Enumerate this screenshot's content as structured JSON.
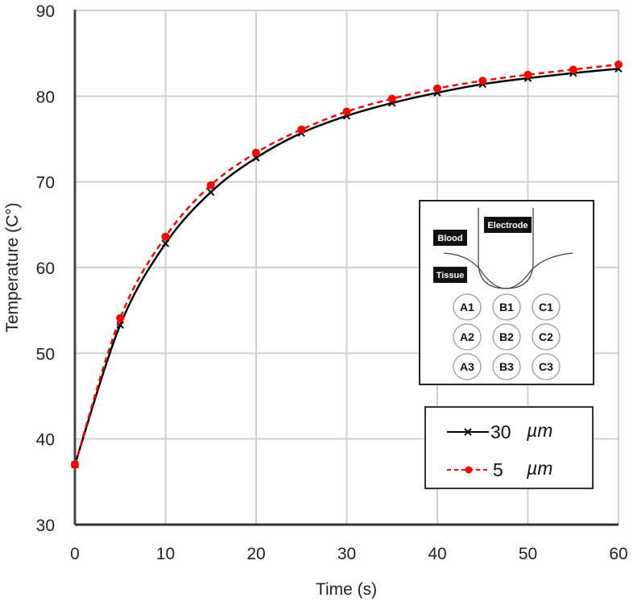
{
  "chart_data": {
    "type": "line",
    "title": "",
    "xlabel": "Time (s)",
    "ylabel": "Temperature (C°)",
    "xlim": [
      0,
      60
    ],
    "ylim": [
      30,
      90
    ],
    "xticks": [
      0,
      10,
      20,
      30,
      40,
      50,
      60
    ],
    "yticks": [
      30,
      40,
      50,
      60,
      70,
      80,
      90
    ],
    "grid": true,
    "legend_position": "lower right (inside plot)",
    "x": [
      0,
      5,
      10,
      15,
      20,
      25,
      30,
      35,
      40,
      45,
      50,
      55,
      60
    ],
    "series": [
      {
        "name": "30 µm",
        "color": "#000000",
        "line_style": "solid",
        "marker": "x",
        "values": [
          37.0,
          53.3,
          62.8,
          68.8,
          72.8,
          75.7,
          77.7,
          79.2,
          80.4,
          81.4,
          82.1,
          82.7,
          83.2
        ]
      },
      {
        "name": "5 µm",
        "color": "#ff0000",
        "line_style": "dashed",
        "marker": "circle",
        "values": [
          37.0,
          54.1,
          63.6,
          69.6,
          73.4,
          76.1,
          78.2,
          79.7,
          80.9,
          81.8,
          82.5,
          83.1,
          83.7
        ]
      }
    ],
    "annotations": {
      "inset_diagram": {
        "labels": [
          "Electrode",
          "Blood",
          "Tissue"
        ],
        "points": [
          [
            "A1",
            "B1",
            "C1"
          ],
          [
            "A2",
            "B2",
            "C2"
          ],
          [
            "A3",
            "B3",
            "C3"
          ]
        ]
      }
    }
  },
  "legend": {
    "items": [
      {
        "num": "30",
        "unit": "µm"
      },
      {
        "num": "5",
        "unit": "µm"
      }
    ]
  }
}
